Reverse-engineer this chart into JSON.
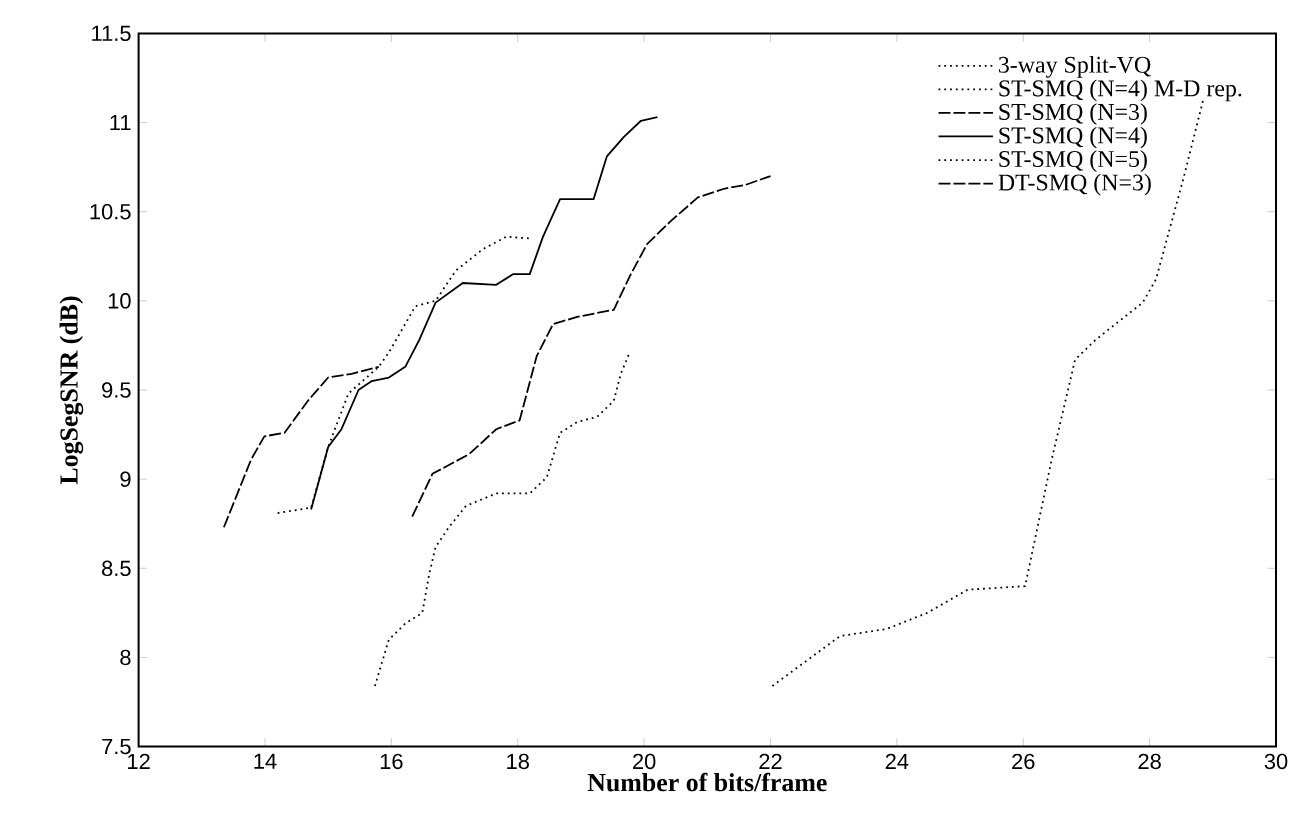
{
  "chart_data": {
    "type": "line",
    "xlabel": "Number of bits/frame",
    "ylabel": "LogSegSNR (dB)",
    "xlim": [
      12,
      30
    ],
    "xticks": [
      12,
      14,
      16,
      18,
      20,
      22,
      24,
      26,
      28,
      30
    ],
    "ylim": [
      7.5,
      11.5
    ],
    "yticks": [
      7.5,
      8,
      8.5,
      9,
      9.5,
      10,
      10.5,
      11,
      11.5
    ],
    "legend": "top right",
    "grid": false,
    "marker": "none",
    "series": [
      {
        "name": "3-way Split-VQ",
        "color": "#000000",
        "line_style": "dotted",
        "x": [
          22.03,
          23.1,
          23.84,
          24.48,
          25.12,
          26.03,
          26.45,
          26.82,
          27.14,
          27.89,
          28.1,
          28.53,
          28.85
        ],
        "values": [
          7.84,
          8.12,
          8.16,
          8.25,
          8.38,
          8.4,
          9.11,
          9.67,
          9.78,
          9.99,
          10.12,
          10.68,
          11.13
        ]
      },
      {
        "name": "ST-SMQ (N=4) M-D rep.",
        "color": "#000000",
        "line_style": "dotted",
        "x": [
          15.74,
          15.96,
          16.22,
          16.49,
          16.6,
          16.7,
          16.91,
          17.18,
          17.66,
          18.19,
          18.46,
          18.67,
          18.94,
          19.26,
          19.52,
          19.63,
          19.77
        ],
        "values": [
          7.84,
          8.1,
          8.19,
          8.25,
          8.47,
          8.62,
          8.73,
          8.85,
          8.92,
          8.92,
          9.01,
          9.26,
          9.32,
          9.35,
          9.44,
          9.59,
          9.71
        ]
      },
      {
        "name": "ST-SMQ (N=3)",
        "color": "#000000",
        "line_style": "dashed",
        "x": [
          16.33,
          16.65,
          17.23,
          17.66,
          18.03,
          18.3,
          18.56,
          18.94,
          19.52,
          19.79,
          20.05,
          20.43,
          20.85,
          21.28,
          21.6,
          22.0
        ],
        "values": [
          8.79,
          9.03,
          9.14,
          9.28,
          9.33,
          9.69,
          9.87,
          9.91,
          9.95,
          10.15,
          10.32,
          10.45,
          10.58,
          10.63,
          10.65,
          10.7
        ]
      },
      {
        "name": "ST-SMQ (N=4)",
        "color": "#000000",
        "line_style": "solid",
        "x": [
          14.73,
          15.0,
          15.21,
          15.48,
          15.69,
          15.96,
          16.22,
          16.44,
          16.7,
          17.13,
          17.66,
          17.93,
          18.19,
          18.4,
          18.67,
          19.2,
          19.41,
          19.68,
          19.95,
          20.21
        ],
        "values": [
          8.83,
          9.18,
          9.28,
          9.5,
          9.55,
          9.57,
          9.63,
          9.78,
          9.99,
          10.1,
          10.09,
          10.15,
          10.15,
          10.36,
          10.57,
          10.57,
          10.81,
          10.92,
          11.01,
          11.03
        ]
      },
      {
        "name": "ST-SMQ (N=5)",
        "color": "#000000",
        "line_style": "dotted",
        "x": [
          14.2,
          14.73,
          15.0,
          15.32,
          15.8,
          15.96,
          16.38,
          16.7,
          17.02,
          17.45,
          17.82,
          18.19
        ],
        "values": [
          8.81,
          8.84,
          9.18,
          9.48,
          9.63,
          9.71,
          9.97,
          10.0,
          10.17,
          10.29,
          10.36,
          10.35
        ]
      },
      {
        "name": "DT-SMQ (N=3)",
        "color": "#000000",
        "line_style": "dashed",
        "x": [
          13.35,
          13.78,
          13.99,
          14.31,
          14.68,
          15.0,
          15.37,
          15.8
        ],
        "values": [
          8.73,
          9.11,
          9.24,
          9.26,
          9.44,
          9.57,
          9.59,
          9.63
        ]
      }
    ]
  }
}
